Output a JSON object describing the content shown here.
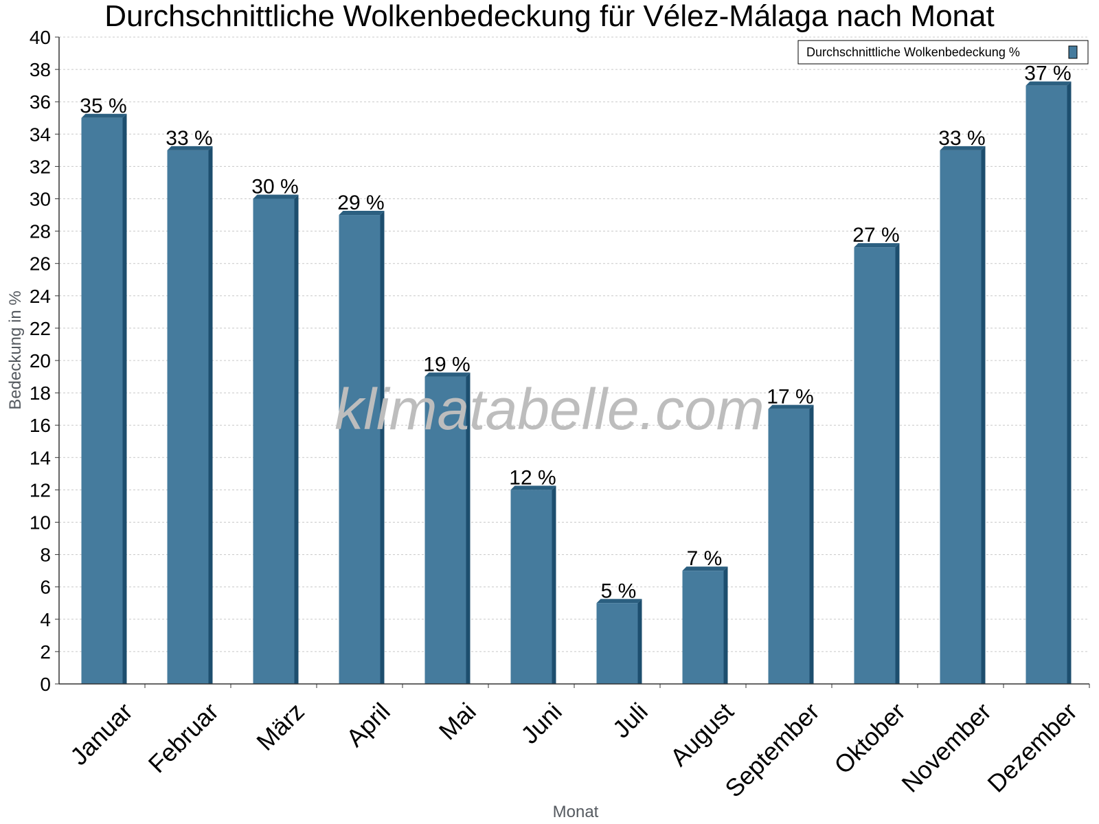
{
  "chart_data": {
    "type": "bar",
    "title": "Durchschnittliche Wolkenbedeckung für Vélez-Málaga nach Monat",
    "xlabel": "Monat",
    "ylabel": "Bedeckung in %",
    "categories": [
      "Januar",
      "Februar",
      "März",
      "April",
      "Mai",
      "Juni",
      "Juli",
      "August",
      "September",
      "Oktober",
      "November",
      "Dezember"
    ],
    "series": [
      {
        "name": "Durchschnittliche Wolkenbedeckung %",
        "values": [
          35,
          33,
          30,
          29,
          19,
          12,
          5,
          7,
          17,
          27,
          33,
          37
        ],
        "value_labels": [
          "35 %",
          "33 %",
          "30 %",
          "29 %",
          "19 %",
          "12 %",
          "5 %",
          "7 %",
          "17 %",
          "27 %",
          "33 %",
          "37 %"
        ]
      }
    ],
    "yticks": [
      "0",
      "2",
      "4",
      "6",
      "8",
      "10",
      "12",
      "14",
      "16",
      "18",
      "20",
      "22",
      "24",
      "26",
      "28",
      "30",
      "32",
      "34",
      "36",
      "38",
      "40"
    ],
    "ylim": [
      0,
      40
    ],
    "grid": true,
    "legend_position": "top-right",
    "watermark": "klimatabelle.com",
    "colors": {
      "bar_face": "#457b9d",
      "bar_side": "#1d4e6e",
      "bar_top": "#2b5f80",
      "grid": "#c8c8c8",
      "axis": "#333333"
    }
  }
}
